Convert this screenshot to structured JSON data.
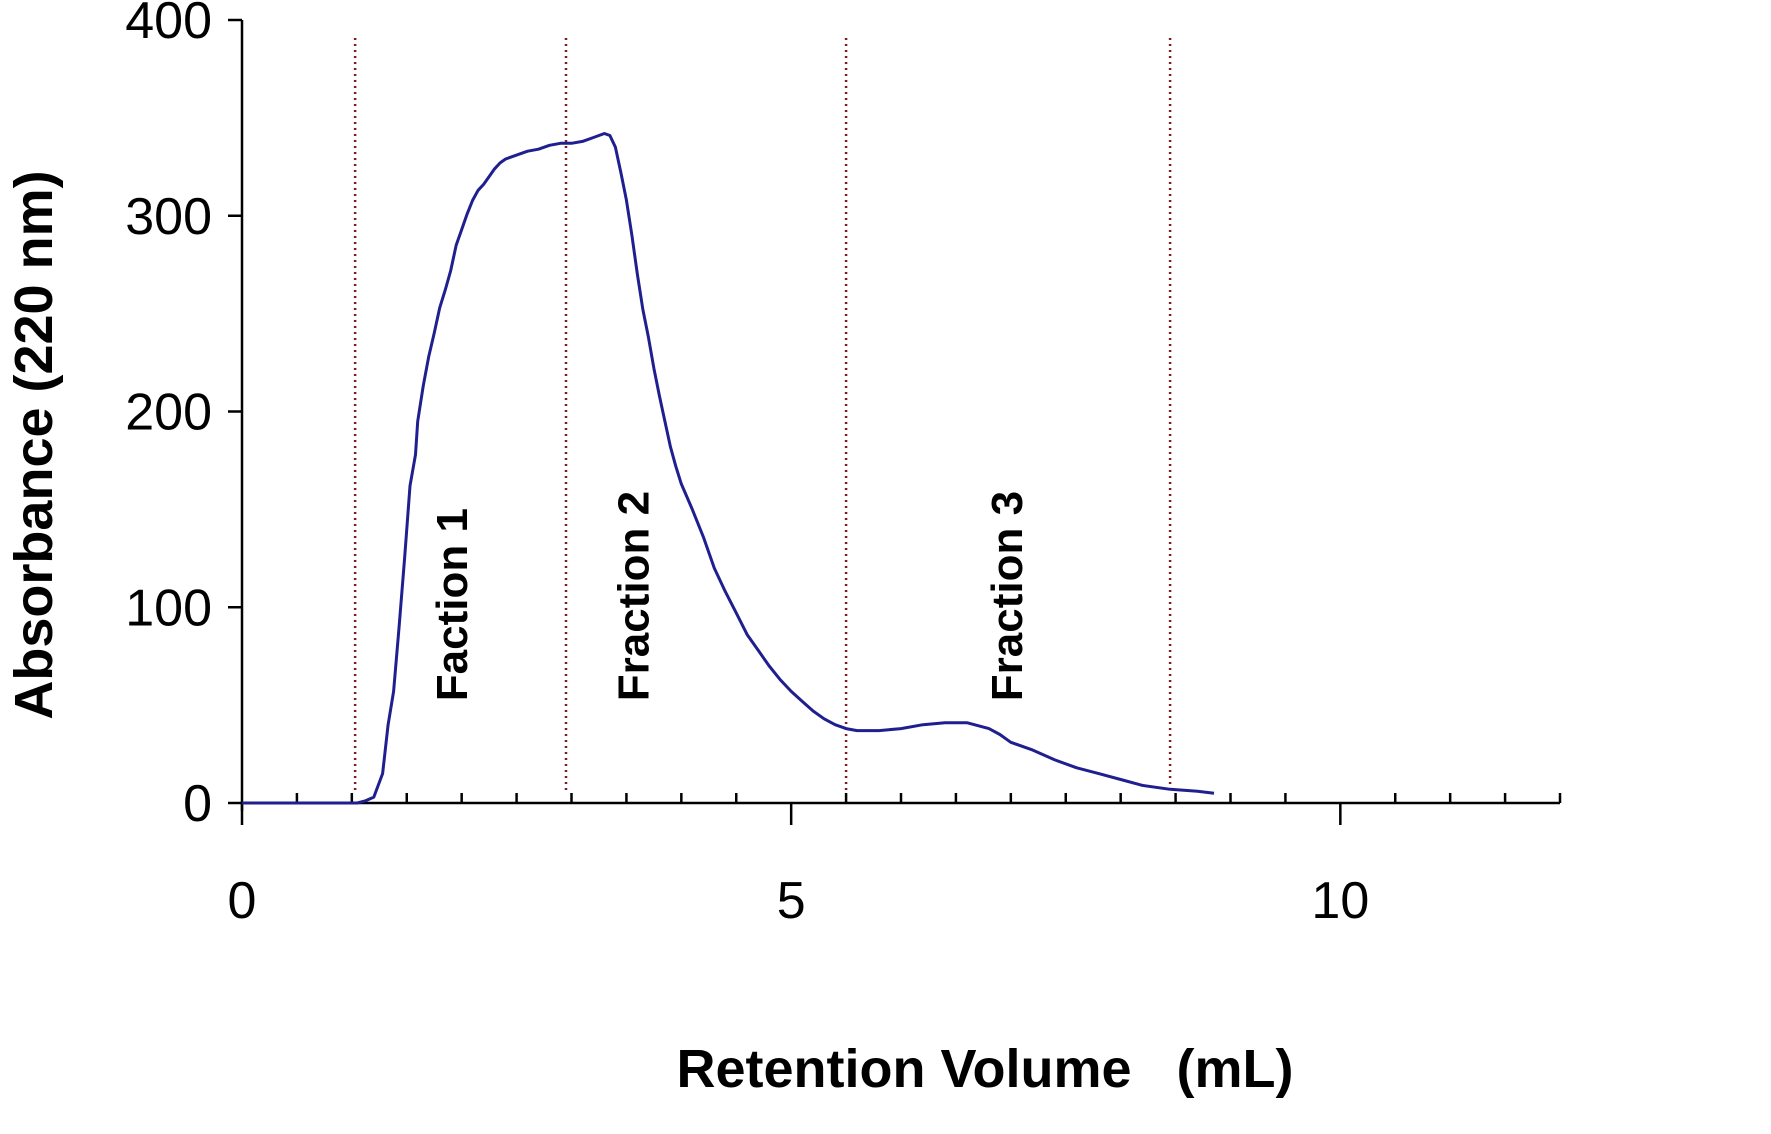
{
  "chart_data": {
    "type": "line",
    "title": "",
    "xlabel": "Retention Volume   (mL)",
    "ylabel": "Absorbance (220 nm)",
    "xlim": [
      0,
      12
    ],
    "ylim": [
      0,
      400
    ],
    "x_ticks": [
      0,
      5,
      10
    ],
    "x_tick_labels": [
      "0",
      "5",
      "10"
    ],
    "x_minor_step": 0.5,
    "y_ticks": [
      0,
      100,
      200,
      300,
      400
    ],
    "y_tick_labels": [
      "0",
      "100",
      "200",
      "300",
      "400"
    ],
    "grid": false,
    "legend": "none",
    "colors": {
      "line": "#1f1f8f",
      "divider": "#7a1f1f",
      "axis": "#000000"
    },
    "dividers": [
      1.03,
      2.95,
      5.5,
      8.45
    ],
    "annotations": [
      {
        "text": "Faction 1",
        "x": 2.05,
        "y": 52,
        "rotation": -90
      },
      {
        "text": "Fraction 2",
        "x": 3.7,
        "y": 52,
        "rotation": -90
      },
      {
        "text": "Fraction 3",
        "x": 7.1,
        "y": 52,
        "rotation": -90
      }
    ],
    "series": [
      {
        "values": [
          [
            0,
            0
          ],
          [
            1.0,
            0
          ],
          [
            1.05,
            0
          ],
          [
            1.12,
            1
          ],
          [
            1.2,
            3
          ],
          [
            1.28,
            15
          ],
          [
            1.33,
            40
          ],
          [
            1.38,
            57
          ],
          [
            1.43,
            90
          ],
          [
            1.48,
            125
          ],
          [
            1.53,
            162
          ],
          [
            1.58,
            178
          ],
          [
            1.6,
            195
          ],
          [
            1.65,
            213
          ],
          [
            1.7,
            228
          ],
          [
            1.75,
            240
          ],
          [
            1.8,
            253
          ],
          [
            1.85,
            262
          ],
          [
            1.9,
            272
          ],
          [
            1.95,
            285
          ],
          [
            2.0,
            293
          ],
          [
            2.05,
            301
          ],
          [
            2.1,
            308
          ],
          [
            2.15,
            313
          ],
          [
            2.2,
            316
          ],
          [
            2.25,
            320
          ],
          [
            2.3,
            324
          ],
          [
            2.35,
            327
          ],
          [
            2.4,
            329
          ],
          [
            2.5,
            331
          ],
          [
            2.6,
            333
          ],
          [
            2.7,
            334
          ],
          [
            2.8,
            336
          ],
          [
            2.9,
            337
          ],
          [
            3.0,
            337
          ],
          [
            3.1,
            338
          ],
          [
            3.2,
            340
          ],
          [
            3.3,
            342
          ],
          [
            3.35,
            341
          ],
          [
            3.4,
            335
          ],
          [
            3.45,
            322
          ],
          [
            3.5,
            308
          ],
          [
            3.55,
            290
          ],
          [
            3.6,
            270
          ],
          [
            3.65,
            252
          ],
          [
            3.7,
            238
          ],
          [
            3.75,
            222
          ],
          [
            3.8,
            208
          ],
          [
            3.85,
            195
          ],
          [
            3.9,
            182
          ],
          [
            3.95,
            172
          ],
          [
            4.0,
            163
          ],
          [
            4.1,
            150
          ],
          [
            4.2,
            136
          ],
          [
            4.3,
            120
          ],
          [
            4.4,
            108
          ],
          [
            4.5,
            97
          ],
          [
            4.6,
            86
          ],
          [
            4.7,
            78
          ],
          [
            4.8,
            70
          ],
          [
            4.9,
            63
          ],
          [
            5.0,
            57
          ],
          [
            5.1,
            52
          ],
          [
            5.2,
            47
          ],
          [
            5.3,
            43
          ],
          [
            5.4,
            40
          ],
          [
            5.5,
            38
          ],
          [
            5.6,
            37
          ],
          [
            5.8,
            37
          ],
          [
            6.0,
            38
          ],
          [
            6.2,
            40
          ],
          [
            6.4,
            41
          ],
          [
            6.6,
            41
          ],
          [
            6.8,
            38
          ],
          [
            6.9,
            35
          ],
          [
            7.0,
            31
          ],
          [
            7.2,
            27
          ],
          [
            7.4,
            22
          ],
          [
            7.6,
            18
          ],
          [
            7.8,
            15
          ],
          [
            8.0,
            12
          ],
          [
            8.2,
            9
          ],
          [
            8.45,
            7
          ],
          [
            8.7,
            6
          ],
          [
            8.85,
            5
          ]
        ]
      }
    ]
  }
}
